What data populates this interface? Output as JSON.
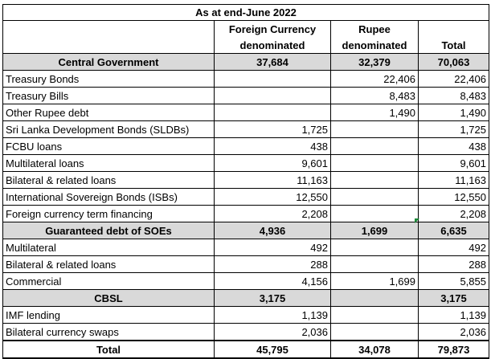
{
  "header": {
    "title": "As at end-June 2022",
    "col_foreign_line1": "Foreign Currency",
    "col_foreign_line2": "denominated",
    "col_rupee_line1": "Rupee",
    "col_rupee_line2": "denominated",
    "col_total": "Total"
  },
  "rows": [
    {
      "label": "Central Government",
      "foreign": "37,684",
      "rupee": "32,379",
      "total": "70,063",
      "section": true
    },
    {
      "label": "Treasury Bonds",
      "foreign": "",
      "rupee": "22,406",
      "total": "22,406"
    },
    {
      "label": "Treasury Bills",
      "foreign": "",
      "rupee": "8,483",
      "total": "8,483"
    },
    {
      "label": "Other Rupee debt",
      "foreign": "",
      "rupee": "1,490",
      "total": "1,490"
    },
    {
      "label": "Sri Lanka Development Bonds (SLDBs)",
      "foreign": "1,725",
      "rupee": "",
      "total": "1,725"
    },
    {
      "label": "FCBU loans",
      "foreign": "438",
      "rupee": "",
      "total": "438"
    },
    {
      "label": "Multilateral loans",
      "foreign": "9,601",
      "rupee": "",
      "total": "9,601"
    },
    {
      "label": "Bilateral & related loans",
      "foreign": "11,163",
      "rupee": "",
      "total": "11,163"
    },
    {
      "label": "International Sovereign Bonds (ISBs)",
      "foreign": "12,550",
      "rupee": "",
      "total": "12,550"
    },
    {
      "label": "Foreign currency term financing",
      "foreign": "2,208",
      "rupee": "",
      "total": "2,208"
    },
    {
      "label": "Guaranteed debt of SOEs",
      "foreign": "4,936",
      "rupee": "1,699",
      "total": "6,635",
      "section": true
    },
    {
      "label": "Multilateral",
      "foreign": "492",
      "rupee": "",
      "total": "492"
    },
    {
      "label": "Bilateral & related loans",
      "foreign": "288",
      "rupee": "",
      "total": "288"
    },
    {
      "label": "Commercial",
      "foreign": "4,156",
      "rupee": "1,699",
      "total": "5,855"
    },
    {
      "label": "CBSL",
      "foreign": "3,175",
      "rupee": "",
      "total": "3,175",
      "section": true
    },
    {
      "label": "IMF lending",
      "foreign": "1,139",
      "rupee": "",
      "total": "1,139"
    },
    {
      "label": "Bilateral currency swaps",
      "foreign": "2,036",
      "rupee": "",
      "total": "2,036"
    }
  ],
  "total_row": {
    "label": "Total",
    "foreign": "45,795",
    "rupee": "34,078",
    "total": "79,873"
  }
}
